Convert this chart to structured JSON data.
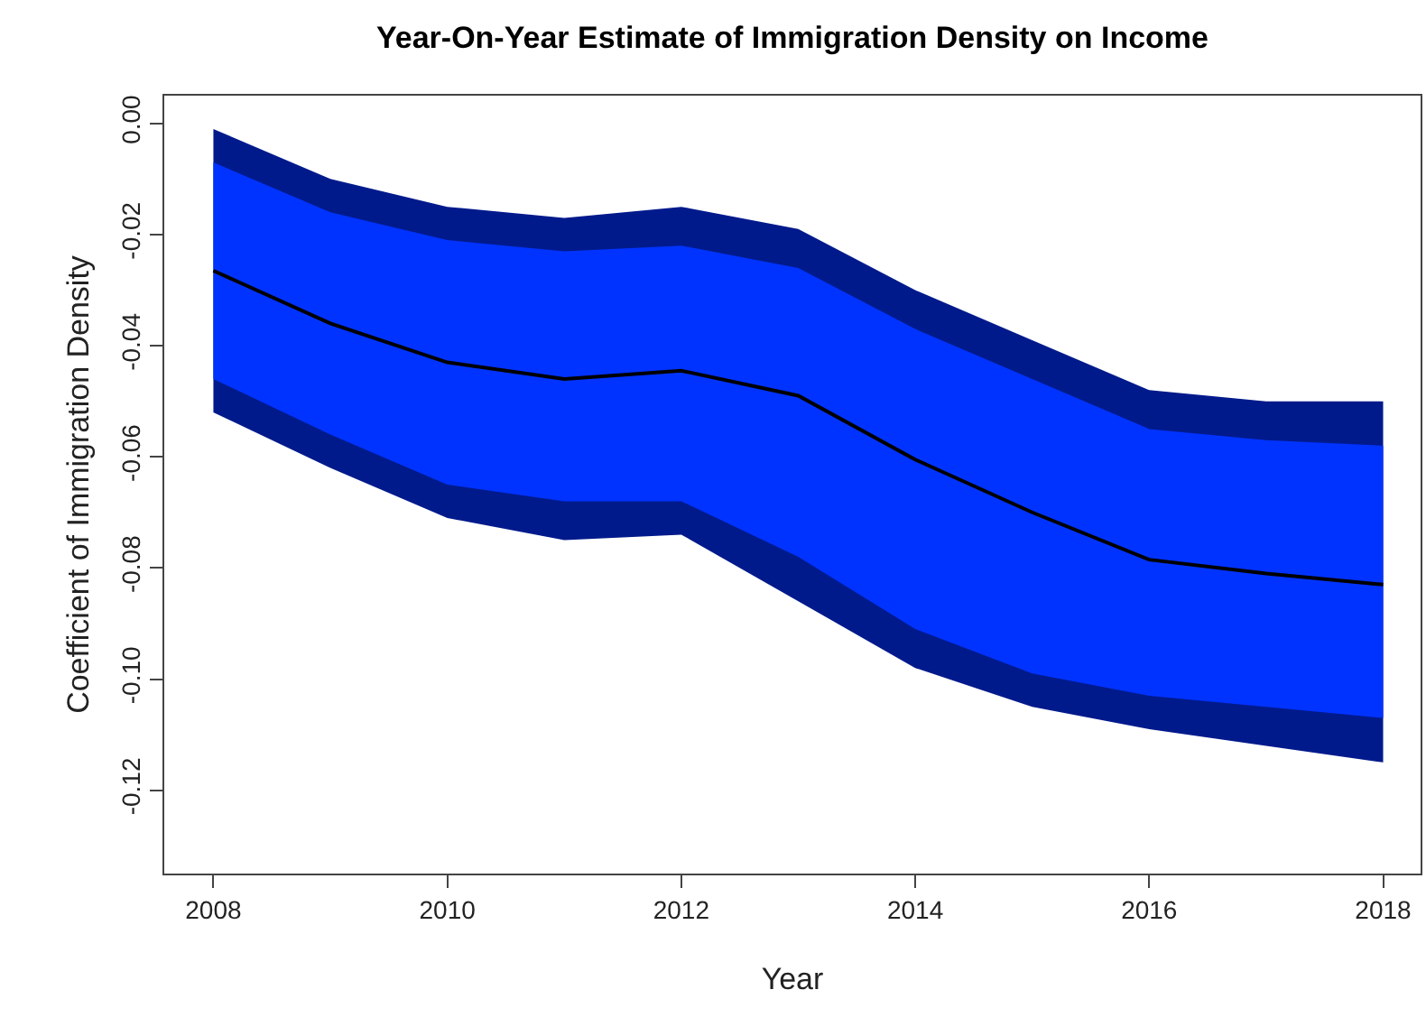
{
  "chart_data": {
    "type": "line",
    "title": "Year-On-Year Estimate of Immigration Density on Income",
    "xlabel": "Year",
    "ylabel": "Coefficient of Immigration Density",
    "x": [
      2008,
      2009,
      2010,
      2011,
      2012,
      2013,
      2014,
      2015,
      2016,
      2017,
      2018
    ],
    "series": [
      {
        "color": "#001a8c",
        "values": [
          null,
          null,
          null,
          null,
          null,
          null,
          null,
          null,
          null,
          null,
          null
        ],
        "upper": [
          -0.001,
          -0.01,
          -0.015,
          -0.017,
          -0.015,
          -0.019,
          -0.03,
          -0.039,
          -0.048,
          -0.05,
          -0.05
        ],
        "lower": [
          -0.052,
          -0.062,
          -0.071,
          -0.075,
          -0.074,
          -0.086,
          -0.098,
          -0.105,
          -0.109,
          -0.112,
          -0.115
        ]
      },
      {
        "color": "#0033ff",
        "values": [
          null,
          null,
          null,
          null,
          null,
          null,
          null,
          null,
          null,
          null,
          null
        ],
        "upper": [
          -0.007,
          -0.016,
          -0.021,
          -0.023,
          -0.022,
          -0.026,
          -0.037,
          -0.046,
          -0.055,
          -0.057,
          -0.058
        ],
        "lower": [
          -0.046,
          -0.056,
          -0.065,
          -0.068,
          -0.068,
          -0.078,
          -0.091,
          -0.099,
          -0.103,
          -0.105,
          -0.107
        ]
      },
      {
        "color": "#000000",
        "values": [
          -0.0265,
          -0.036,
          -0.043,
          -0.046,
          -0.0445,
          -0.049,
          -0.0605,
          -0.07,
          -0.0785,
          -0.081,
          -0.083
        ]
      }
    ],
    "xlim": [
      2007.58,
      2018.32
    ],
    "xticks": [
      2008,
      2010,
      2012,
      2014,
      2016,
      2018
    ],
    "ylim": [
      -0.135,
      0.005
    ],
    "yticks": [
      {
        "value": -0.12,
        "label": "-0.12"
      },
      {
        "value": -0.1,
        "label": "-0.10"
      },
      {
        "value": -0.08,
        "label": "-0.08"
      },
      {
        "value": -0.06,
        "label": "-0.06"
      },
      {
        "value": -0.04,
        "label": "-0.04"
      },
      {
        "value": -0.02,
        "label": "-0.02"
      },
      {
        "value": 0,
        "label": "0.00"
      }
    ],
    "grid": false,
    "marker": "none",
    "line_style": "solid"
  }
}
